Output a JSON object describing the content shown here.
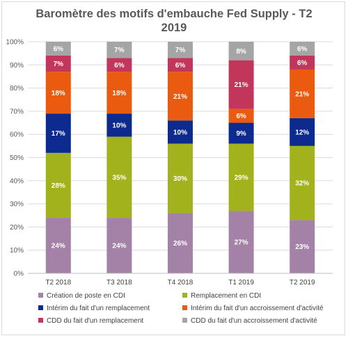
{
  "chart_data": {
    "type": "bar",
    "stacked": true,
    "percent": true,
    "title": "Baromètre des motifs d'embauche Fed Supply - T2 2019",
    "xlabel": "",
    "ylabel": "",
    "ylim": [
      0,
      100
    ],
    "yticks": [
      "0%",
      "10%",
      "20%",
      "30%",
      "40%",
      "50%",
      "60%",
      "70%",
      "80%",
      "90%",
      "100%"
    ],
    "categories": [
      "T2 2018",
      "T3 2018",
      "T4 2018",
      "T1 2019",
      "T2 2019"
    ],
    "grid": true,
    "legend_position": "bottom",
    "series": [
      {
        "name": "Création de poste en CDI",
        "color": "#a482a8",
        "values": [
          24,
          24,
          26,
          27,
          23
        ]
      },
      {
        "name": "Remplacement en CDI",
        "color": "#a2b21c",
        "values": [
          28,
          35,
          30,
          29,
          32
        ]
      },
      {
        "name": "Intérim du fait d'un remplacement",
        "color": "#0d2a8f",
        "values": [
          17,
          10,
          10,
          9,
          12
        ]
      },
      {
        "name": "Intérim du fait d'un accroissement d'activité",
        "color": "#ea5b0f",
        "values": [
          18,
          18,
          21,
          6,
          21
        ]
      },
      {
        "name": "CDD du fait d'un remplacement",
        "color": "#c1365a",
        "values": [
          7,
          6,
          6,
          21,
          6
        ]
      },
      {
        "name": "CDD du fait d'un accroissement d'activité",
        "color": "#a5a5a5",
        "values": [
          6,
          7,
          7,
          8,
          6
        ]
      }
    ]
  }
}
